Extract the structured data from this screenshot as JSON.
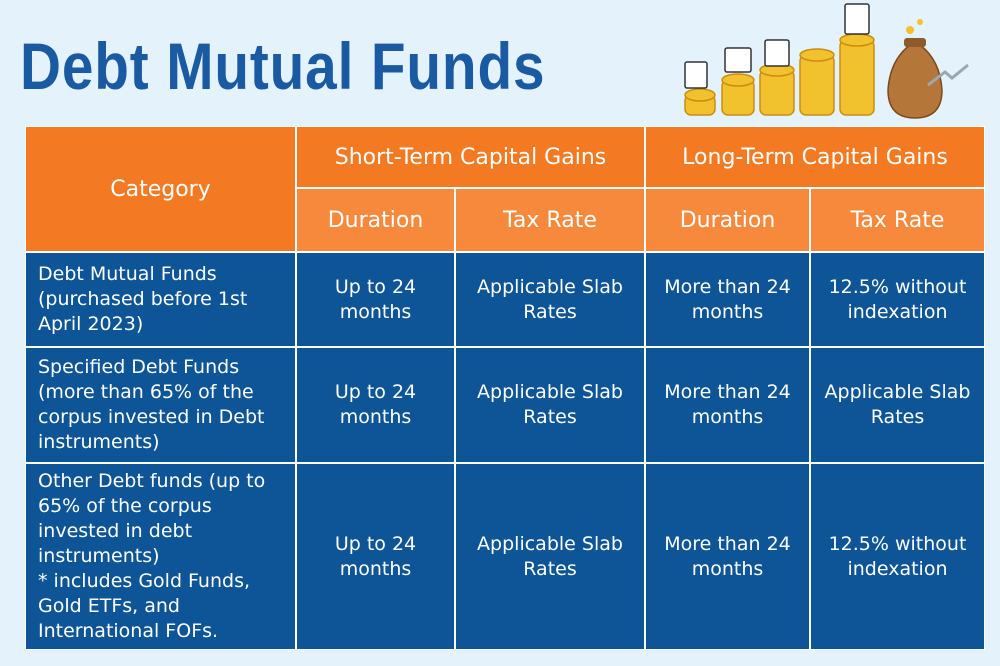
{
  "header": {
    "title": "Debt Mutual Funds"
  },
  "table": {
    "header_top": [
      "Category",
      "Short-Term Capital Gains",
      "Long-Term Capital Gains"
    ],
    "header_sub": [
      "Duration",
      "Tax Rate",
      "Duration",
      "Tax Rate"
    ],
    "rows": [
      [
        "Debt Mutual Funds (purchased before 1st April 2023)",
        "Up to 24 months",
        "Applicable Slab Rates",
        "More than 24 months",
        "12.5% without indexation"
      ],
      [
        "Specified Debt Funds (more than 65% of the corpus invested in Debt instruments)",
        "Up to 24 months",
        "Applicable Slab Rates",
        "More than 24 months",
        "Applicable Slab Rates"
      ],
      [
        "Other Debt funds (up to 65% of the corpus invested in debt instruments)\n* includes Gold Funds, Gold ETFs, and International FOFs.",
        "Up to 24 months",
        "Applicable Slab Rates",
        "More than 24 months",
        "12.5% without indexation"
      ]
    ]
  }
}
